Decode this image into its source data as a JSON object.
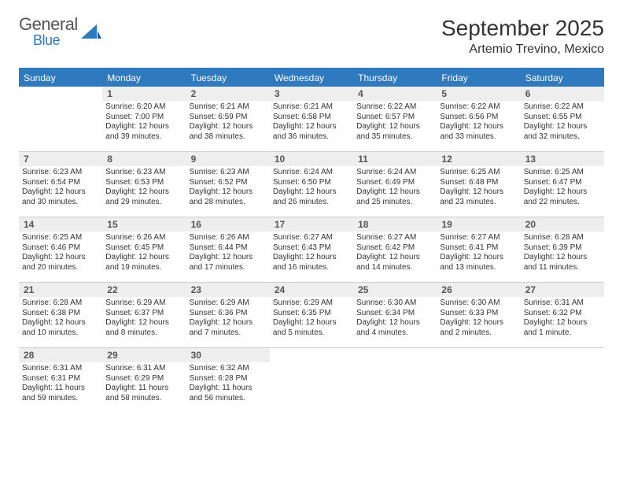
{
  "brand": {
    "primary": "General",
    "secondary": "Blue",
    "brand_color": "#2f79bf"
  },
  "title": "September 2025",
  "location": "Artemio Trevino, Mexico",
  "colors": {
    "header_bar": "#2f79bf",
    "header_text": "#ffffff",
    "daynum_bg": "#eeeeee",
    "daynum_text": "#555555",
    "body_text": "#333333",
    "rule": "#cfcfcf"
  },
  "days_of_week": [
    "Sunday",
    "Monday",
    "Tuesday",
    "Wednesday",
    "Thursday",
    "Friday",
    "Saturday"
  ],
  "weeks": [
    [
      {
        "n": "",
        "sr": "",
        "ss": "",
        "dl": ""
      },
      {
        "n": "1",
        "sr": "Sunrise: 6:20 AM",
        "ss": "Sunset: 7:00 PM",
        "dl": "Daylight: 12 hours and 39 minutes."
      },
      {
        "n": "2",
        "sr": "Sunrise: 6:21 AM",
        "ss": "Sunset: 6:59 PM",
        "dl": "Daylight: 12 hours and 38 minutes."
      },
      {
        "n": "3",
        "sr": "Sunrise: 6:21 AM",
        "ss": "Sunset: 6:58 PM",
        "dl": "Daylight: 12 hours and 36 minutes."
      },
      {
        "n": "4",
        "sr": "Sunrise: 6:22 AM",
        "ss": "Sunset: 6:57 PM",
        "dl": "Daylight: 12 hours and 35 minutes."
      },
      {
        "n": "5",
        "sr": "Sunrise: 6:22 AM",
        "ss": "Sunset: 6:56 PM",
        "dl": "Daylight: 12 hours and 33 minutes."
      },
      {
        "n": "6",
        "sr": "Sunrise: 6:22 AM",
        "ss": "Sunset: 6:55 PM",
        "dl": "Daylight: 12 hours and 32 minutes."
      }
    ],
    [
      {
        "n": "7",
        "sr": "Sunrise: 6:23 AM",
        "ss": "Sunset: 6:54 PM",
        "dl": "Daylight: 12 hours and 30 minutes."
      },
      {
        "n": "8",
        "sr": "Sunrise: 6:23 AM",
        "ss": "Sunset: 6:53 PM",
        "dl": "Daylight: 12 hours and 29 minutes."
      },
      {
        "n": "9",
        "sr": "Sunrise: 6:23 AM",
        "ss": "Sunset: 6:52 PM",
        "dl": "Daylight: 12 hours and 28 minutes."
      },
      {
        "n": "10",
        "sr": "Sunrise: 6:24 AM",
        "ss": "Sunset: 6:50 PM",
        "dl": "Daylight: 12 hours and 26 minutes."
      },
      {
        "n": "11",
        "sr": "Sunrise: 6:24 AM",
        "ss": "Sunset: 6:49 PM",
        "dl": "Daylight: 12 hours and 25 minutes."
      },
      {
        "n": "12",
        "sr": "Sunrise: 6:25 AM",
        "ss": "Sunset: 6:48 PM",
        "dl": "Daylight: 12 hours and 23 minutes."
      },
      {
        "n": "13",
        "sr": "Sunrise: 6:25 AM",
        "ss": "Sunset: 6:47 PM",
        "dl": "Daylight: 12 hours and 22 minutes."
      }
    ],
    [
      {
        "n": "14",
        "sr": "Sunrise: 6:25 AM",
        "ss": "Sunset: 6:46 PM",
        "dl": "Daylight: 12 hours and 20 minutes."
      },
      {
        "n": "15",
        "sr": "Sunrise: 6:26 AM",
        "ss": "Sunset: 6:45 PM",
        "dl": "Daylight: 12 hours and 19 minutes."
      },
      {
        "n": "16",
        "sr": "Sunrise: 6:26 AM",
        "ss": "Sunset: 6:44 PM",
        "dl": "Daylight: 12 hours and 17 minutes."
      },
      {
        "n": "17",
        "sr": "Sunrise: 6:27 AM",
        "ss": "Sunset: 6:43 PM",
        "dl": "Daylight: 12 hours and 16 minutes."
      },
      {
        "n": "18",
        "sr": "Sunrise: 6:27 AM",
        "ss": "Sunset: 6:42 PM",
        "dl": "Daylight: 12 hours and 14 minutes."
      },
      {
        "n": "19",
        "sr": "Sunrise: 6:27 AM",
        "ss": "Sunset: 6:41 PM",
        "dl": "Daylight: 12 hours and 13 minutes."
      },
      {
        "n": "20",
        "sr": "Sunrise: 6:28 AM",
        "ss": "Sunset: 6:39 PM",
        "dl": "Daylight: 12 hours and 11 minutes."
      }
    ],
    [
      {
        "n": "21",
        "sr": "Sunrise: 6:28 AM",
        "ss": "Sunset: 6:38 PM",
        "dl": "Daylight: 12 hours and 10 minutes."
      },
      {
        "n": "22",
        "sr": "Sunrise: 6:29 AM",
        "ss": "Sunset: 6:37 PM",
        "dl": "Daylight: 12 hours and 8 minutes."
      },
      {
        "n": "23",
        "sr": "Sunrise: 6:29 AM",
        "ss": "Sunset: 6:36 PM",
        "dl": "Daylight: 12 hours and 7 minutes."
      },
      {
        "n": "24",
        "sr": "Sunrise: 6:29 AM",
        "ss": "Sunset: 6:35 PM",
        "dl": "Daylight: 12 hours and 5 minutes."
      },
      {
        "n": "25",
        "sr": "Sunrise: 6:30 AM",
        "ss": "Sunset: 6:34 PM",
        "dl": "Daylight: 12 hours and 4 minutes."
      },
      {
        "n": "26",
        "sr": "Sunrise: 6:30 AM",
        "ss": "Sunset: 6:33 PM",
        "dl": "Daylight: 12 hours and 2 minutes."
      },
      {
        "n": "27",
        "sr": "Sunrise: 6:31 AM",
        "ss": "Sunset: 6:32 PM",
        "dl": "Daylight: 12 hours and 1 minute."
      }
    ],
    [
      {
        "n": "28",
        "sr": "Sunrise: 6:31 AM",
        "ss": "Sunset: 6:31 PM",
        "dl": "Daylight: 11 hours and 59 minutes."
      },
      {
        "n": "29",
        "sr": "Sunrise: 6:31 AM",
        "ss": "Sunset: 6:29 PM",
        "dl": "Daylight: 11 hours and 58 minutes."
      },
      {
        "n": "30",
        "sr": "Sunrise: 6:32 AM",
        "ss": "Sunset: 6:28 PM",
        "dl": "Daylight: 11 hours and 56 minutes."
      },
      {
        "n": "",
        "sr": "",
        "ss": "",
        "dl": ""
      },
      {
        "n": "",
        "sr": "",
        "ss": "",
        "dl": ""
      },
      {
        "n": "",
        "sr": "",
        "ss": "",
        "dl": ""
      },
      {
        "n": "",
        "sr": "",
        "ss": "",
        "dl": ""
      }
    ]
  ]
}
